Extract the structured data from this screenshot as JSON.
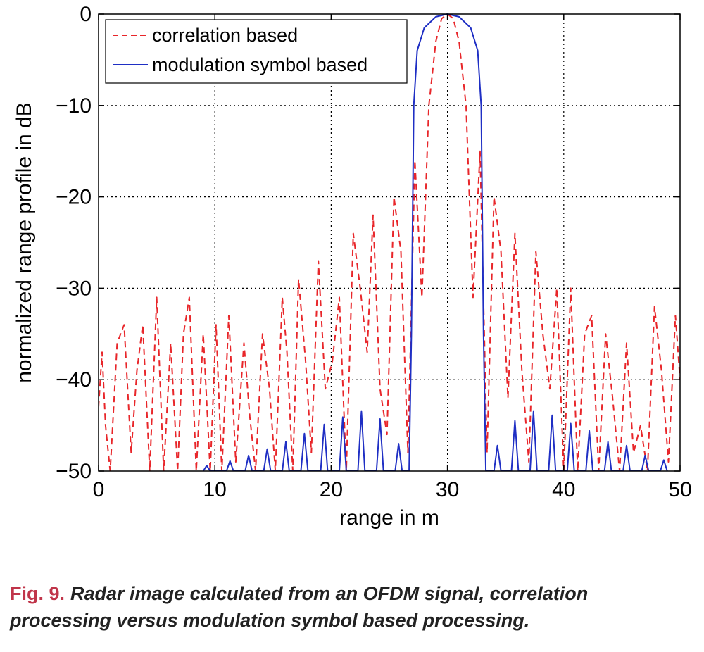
{
  "chart_data": {
    "type": "line",
    "xlabel": "range in m",
    "ylabel": "normalized range profile in dB",
    "xlim": [
      0,
      50
    ],
    "ylim": [
      -50,
      0
    ],
    "xticks": [
      0,
      10,
      20,
      30,
      40,
      50
    ],
    "yticks": [
      0,
      -10,
      -20,
      -30,
      -40,
      -50
    ],
    "xtick_labels": [
      "0",
      "10",
      "20",
      "30",
      "40",
      "50"
    ],
    "ytick_labels": [
      "0",
      "−10",
      "−20",
      "−30",
      "−40",
      "−50"
    ],
    "grid": true,
    "legend_position": "top-left",
    "series": [
      {
        "name": "correlation based",
        "style": "dashed",
        "color": "#e8262a",
        "x": [
          0,
          0.3,
          0.6,
          1.0,
          1.6,
          2.2,
          2.8,
          3.3,
          3.8,
          4.4,
          5.0,
          5.6,
          6.2,
          6.8,
          7.3,
          7.8,
          8.4,
          9.0,
          9.6,
          10.1,
          10.6,
          11.2,
          11.8,
          12.5,
          13.0,
          13.5,
          14.1,
          14.7,
          15.2,
          15.8,
          16.2,
          16.7,
          17.2,
          17.8,
          18.3,
          18.9,
          19.5,
          20.1,
          20.7,
          21.3,
          21.9,
          22.5,
          23.1,
          23.6,
          24.2,
          24.8,
          25.4,
          26.0,
          26.6,
          27.2,
          27.8,
          28.4,
          29.0,
          29.5,
          30.0,
          30.5,
          31.0,
          31.6,
          32.2,
          32.8,
          33.4,
          34.0,
          34.6,
          35.2,
          35.8,
          36.4,
          37.0,
          37.6,
          38.2,
          38.8,
          39.4,
          40.0,
          40.6,
          41.2,
          41.8,
          42.4,
          43.0,
          43.6,
          44.2,
          44.8,
          45.4,
          46.0,
          46.6,
          47.2,
          47.8,
          48.4,
          49.0,
          49.6,
          50.0
        ],
        "y": [
          -43,
          -37,
          -45,
          -50,
          -36,
          -34,
          -48,
          -39,
          -34,
          -50,
          -31,
          -50,
          -36,
          -50,
          -35,
          -31,
          -50,
          -35,
          -50,
          -34,
          -50,
          -33,
          -49,
          -36,
          -44,
          -50,
          -35,
          -41,
          -50,
          -31,
          -37,
          -50,
          -29,
          -38,
          -48,
          -27,
          -41,
          -38,
          -31,
          -50,
          -24,
          -30,
          -37,
          -22,
          -41,
          -46,
          -20,
          -26,
          -48,
          -16,
          -31,
          -10,
          -3,
          -0.5,
          0,
          -0.5,
          -3,
          -10,
          -31,
          -15,
          -48,
          -20,
          -26,
          -42,
          -24,
          -39,
          -49,
          -26,
          -35,
          -41,
          -30,
          -50,
          -30,
          -50,
          -35,
          -33,
          -50,
          -35,
          -42,
          -50,
          -36,
          -48,
          -45,
          -50,
          -32,
          -39,
          -49,
          -33,
          -40
        ]
      },
      {
        "name": "modulation symbol based",
        "style": "solid",
        "color": "#1f2fc4",
        "x": [
          9.0,
          9.3,
          9.6,
          11.0,
          11.3,
          11.6,
          12.6,
          12.9,
          13.2,
          14.2,
          14.5,
          14.8,
          15.8,
          16.1,
          16.4,
          17.4,
          17.7,
          18.0,
          19.1,
          19.4,
          19.7,
          20.7,
          21.0,
          21.3,
          22.3,
          22.6,
          22.9,
          23.9,
          24.2,
          24.5,
          25.5,
          25.8,
          26.1,
          26.7,
          26.9,
          27.1,
          27.4,
          28.0,
          29.0,
          30.0,
          31.0,
          32.0,
          32.6,
          32.9,
          33.1,
          33.3,
          34.0,
          34.3,
          34.6,
          35.5,
          35.8,
          36.1,
          37.1,
          37.4,
          37.7,
          38.7,
          39.0,
          39.3,
          40.3,
          40.6,
          40.9,
          41.9,
          42.2,
          42.5,
          43.5,
          43.8,
          44.1,
          45.1,
          45.4,
          45.7,
          46.7,
          47.0,
          47.3,
          48.3,
          48.6,
          48.9
        ],
        "y": [
          -50,
          -49.4,
          -50,
          -50,
          -48.9,
          -50,
          -50,
          -48.3,
          -50,
          -50,
          -47.6,
          -50,
          -50,
          -46.8,
          -50,
          -50,
          -45.9,
          -50,
          -50,
          -44.9,
          -50,
          -50,
          -44.1,
          -50,
          -50,
          -43.5,
          -50,
          -50,
          -44.3,
          -50,
          -50,
          -47.0,
          -50,
          -50,
          -35,
          -10,
          -4,
          -1.5,
          -0.3,
          0,
          -0.3,
          -1.5,
          -4,
          -10,
          -35,
          -50,
          -50,
          -47.2,
          -50,
          -50,
          -44.5,
          -50,
          -50,
          -43.5,
          -50,
          -50,
          -43.9,
          -50,
          -50,
          -44.8,
          -50,
          -50,
          -45.6,
          -50,
          -50,
          -46.8,
          -50,
          -50,
          -47.2,
          -50,
          -50,
          -48.3,
          -50,
          -50,
          -48.8,
          -50
        ]
      }
    ]
  },
  "caption": {
    "label": "Fig. 9.",
    "text": "Radar image calculated from an OFDM signal, correlation processing versus modulation symbol based processing."
  }
}
